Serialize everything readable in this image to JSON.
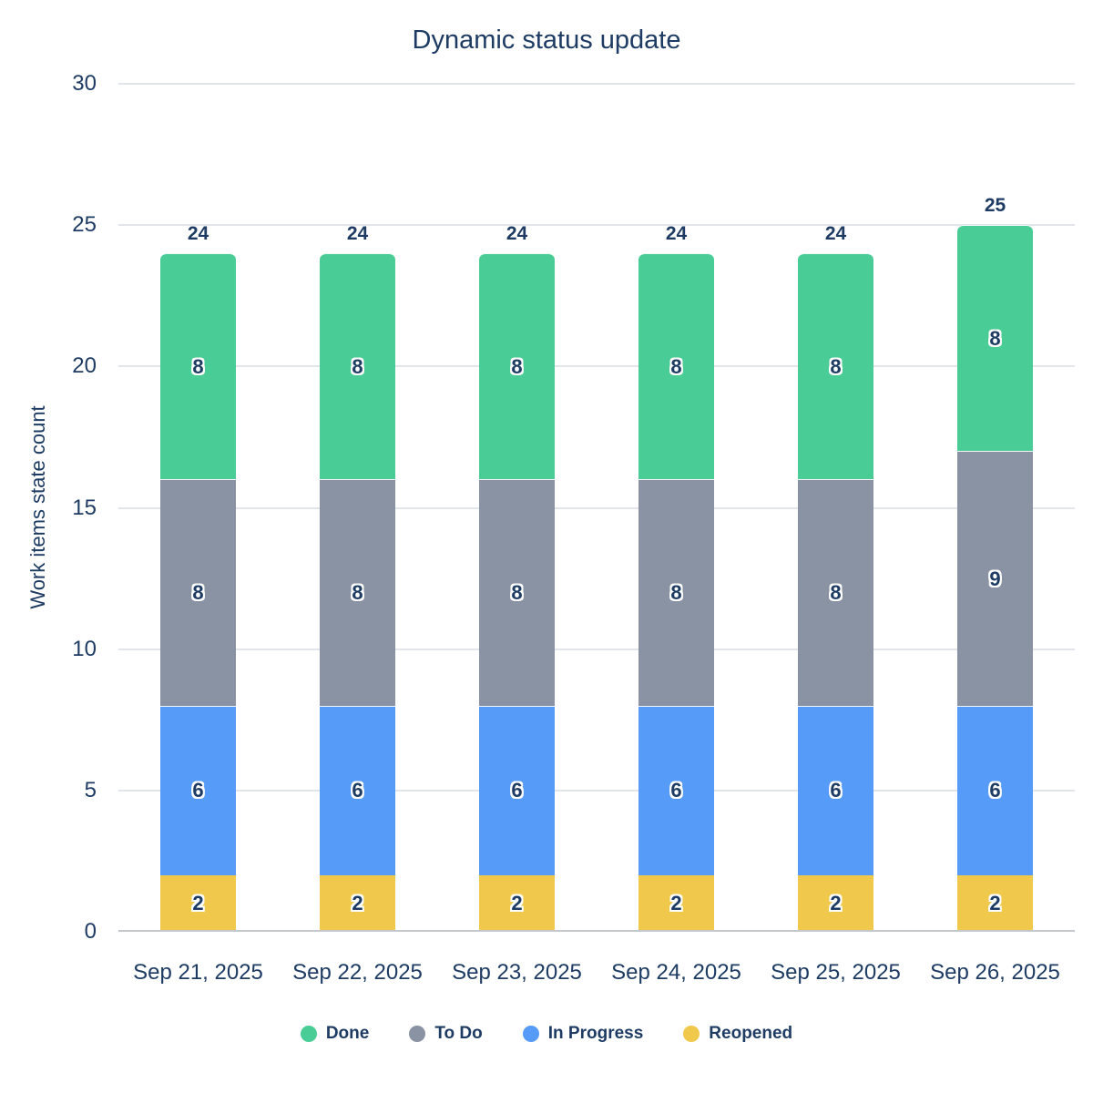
{
  "title": "Dynamic status update",
  "colors": {
    "text": "#1E3C63",
    "background": "#FFFFFF",
    "gridline": "#E2E5EA",
    "baseline": "#C3C8CE",
    "done": "#49CC96",
    "todo": "#8A93A3",
    "in_progress": "#579BF9",
    "reopened": "#F0C84B"
  },
  "chart_data": {
    "type": "bar",
    "stacked": true,
    "title": "Dynamic status update",
    "xlabel": "",
    "ylabel": "Work items state count",
    "ylim": [
      0,
      30
    ],
    "yticks": [
      0,
      5,
      10,
      15,
      20,
      25,
      30
    ],
    "grid": true,
    "legend_position": "bottom",
    "categories": [
      "Sep 21, 2025",
      "Sep 22, 2025",
      "Sep 23, 2025",
      "Sep 24, 2025",
      "Sep 25, 2025",
      "Sep 26, 2025"
    ],
    "series": [
      {
        "name": "Done",
        "color": "#49CC96",
        "values": [
          8,
          8,
          8,
          8,
          8,
          8
        ]
      },
      {
        "name": "To Do",
        "color": "#8A93A3",
        "values": [
          8,
          8,
          8,
          8,
          8,
          9
        ]
      },
      {
        "name": "In Progress",
        "color": "#579BF9",
        "values": [
          6,
          6,
          6,
          6,
          6,
          6
        ]
      },
      {
        "name": "Reopened",
        "color": "#F0C84B",
        "values": [
          2,
          2,
          2,
          2,
          2,
          2
        ]
      }
    ],
    "stack_order_bottom_to_top": [
      "Reopened",
      "In Progress",
      "To Do",
      "Done"
    ],
    "totals": [
      24,
      24,
      24,
      24,
      24,
      25
    ]
  }
}
